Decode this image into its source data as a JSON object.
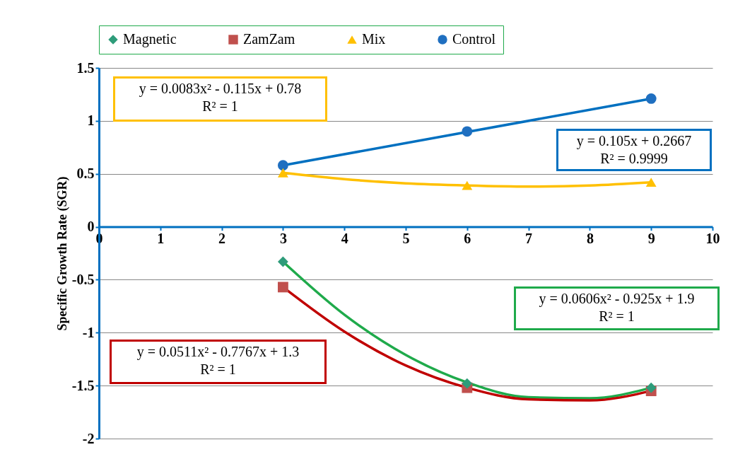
{
  "chart_data": {
    "type": "scatter",
    "ylabel": "Specific Growth Rate (SGR)",
    "x": [
      3,
      6,
      9
    ],
    "series": [
      {
        "name": "Magnetic",
        "color": "#2e9c7a",
        "marker": "diamond",
        "values": [
          -0.33,
          -1.48,
          -1.52
        ]
      },
      {
        "name": "ZamZam",
        "color": "#c0504d",
        "marker": "square",
        "values": [
          -0.57,
          -1.52,
          -1.55
        ]
      },
      {
        "name": "Mix",
        "color": "#ffc000",
        "marker": "triangle",
        "values": [
          0.51,
          0.39,
          0.42
        ]
      },
      {
        "name": "Control",
        "color": "#1f6fc0",
        "marker": "circle",
        "values": [
          0.58,
          0.9,
          1.21
        ]
      },
      {
        "type": "line",
        "color": "#1faa4b",
        "x": [
          3,
          4,
          5,
          6,
          7,
          8,
          9
        ],
        "values": [
          -0.33,
          -0.83,
          -1.21,
          -1.47,
          -1.61,
          -1.62,
          -1.52
        ]
      },
      {
        "type": "line",
        "color": "#c00000",
        "x": [
          3,
          4,
          5,
          6,
          7,
          8,
          9
        ],
        "values": [
          -0.57,
          -0.99,
          -1.31,
          -1.52,
          -1.63,
          -1.64,
          -1.55
        ]
      },
      {
        "type": "line",
        "color": "#ffc000",
        "x": [
          3,
          4,
          5,
          6,
          7,
          8,
          9
        ],
        "values": [
          0.51,
          0.45,
          0.41,
          0.39,
          0.38,
          0.39,
          0.42
        ]
      },
      {
        "type": "line",
        "color": "#0070c0",
        "x": [
          3,
          9
        ],
        "values": [
          0.58,
          1.21
        ]
      }
    ],
    "annotations": [
      "y = 0.0083x² - 0.115x + 0.78\nR² = 1",
      "y = 0.105x + 0.2667\nR² = 0.9999",
      "y = 0.0606x² - 0.925x + 1.9\nR² = 1",
      "y = 0.0511x² - 0.7767x + 1.3\nR² = 1"
    ],
    "xlim": [
      0,
      10
    ],
    "xticks": [
      0,
      1,
      2,
      3,
      4,
      5,
      6,
      7,
      8,
      9,
      10
    ],
    "ylim": [
      -2,
      1.5
    ],
    "yticks": [
      -2,
      -1.5,
      -1,
      -0.5,
      0,
      0.5,
      1,
      1.5
    ],
    "grid": "y",
    "legend": "top"
  }
}
